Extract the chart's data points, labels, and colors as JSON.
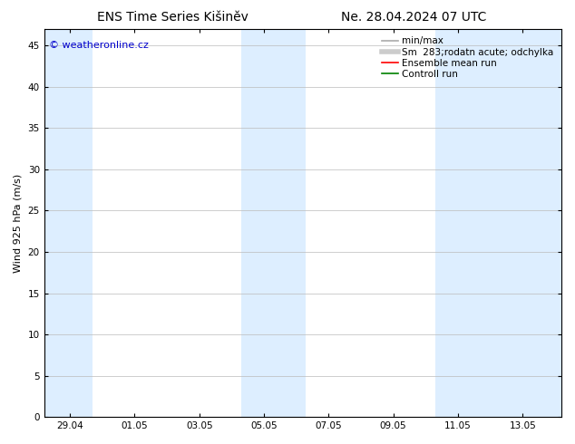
{
  "title_left": "ENS Time Series Kišinĕv",
  "title_right": "Ne. 28.04.2024 07 UTC",
  "ylabel": "Wind 925 hPa (m/s)",
  "watermark": "© weatheronline.cz",
  "watermark_color": "#0000cc",
  "ylim": [
    0,
    47
  ],
  "yticks": [
    0,
    5,
    10,
    15,
    20,
    25,
    30,
    35,
    40,
    45
  ],
  "background_color": "#ffffff",
  "plot_bg_color": "#ffffff",
  "shaded_color": "#ddeeff",
  "grid_color": "#bbbbbb",
  "legend_entries": [
    {
      "label": "min/max",
      "color": "#aaaaaa",
      "lw": 1.2,
      "style": "solid"
    },
    {
      "label": "Sm  283;rodatn acute; odchylka",
      "color": "#cccccc",
      "lw": 4,
      "style": "solid"
    },
    {
      "label": "Ensemble mean run",
      "color": "#ff0000",
      "lw": 1.2,
      "style": "solid"
    },
    {
      "label": "Controll run",
      "color": "#008000",
      "lw": 1.2,
      "style": "solid"
    }
  ],
  "x_tick_labels": [
    "29.04",
    "01.05",
    "03.05",
    "05.05",
    "07.05",
    "09.05",
    "11.05",
    "13.05"
  ],
  "x_tick_positions": [
    0,
    2,
    4,
    6,
    8,
    10,
    12,
    14
  ],
  "xlim": [
    -0.8,
    15.2
  ],
  "shaded_bands": [
    {
      "x_start": -0.8,
      "x_end": 0.7
    },
    {
      "x_start": 5.3,
      "x_end": 7.3
    },
    {
      "x_start": 11.3,
      "x_end": 15.2
    }
  ],
  "font_size_title": 10,
  "font_size_axis": 8,
  "font_size_tick": 7.5,
  "font_size_legend": 7.5,
  "font_size_watermark": 8
}
